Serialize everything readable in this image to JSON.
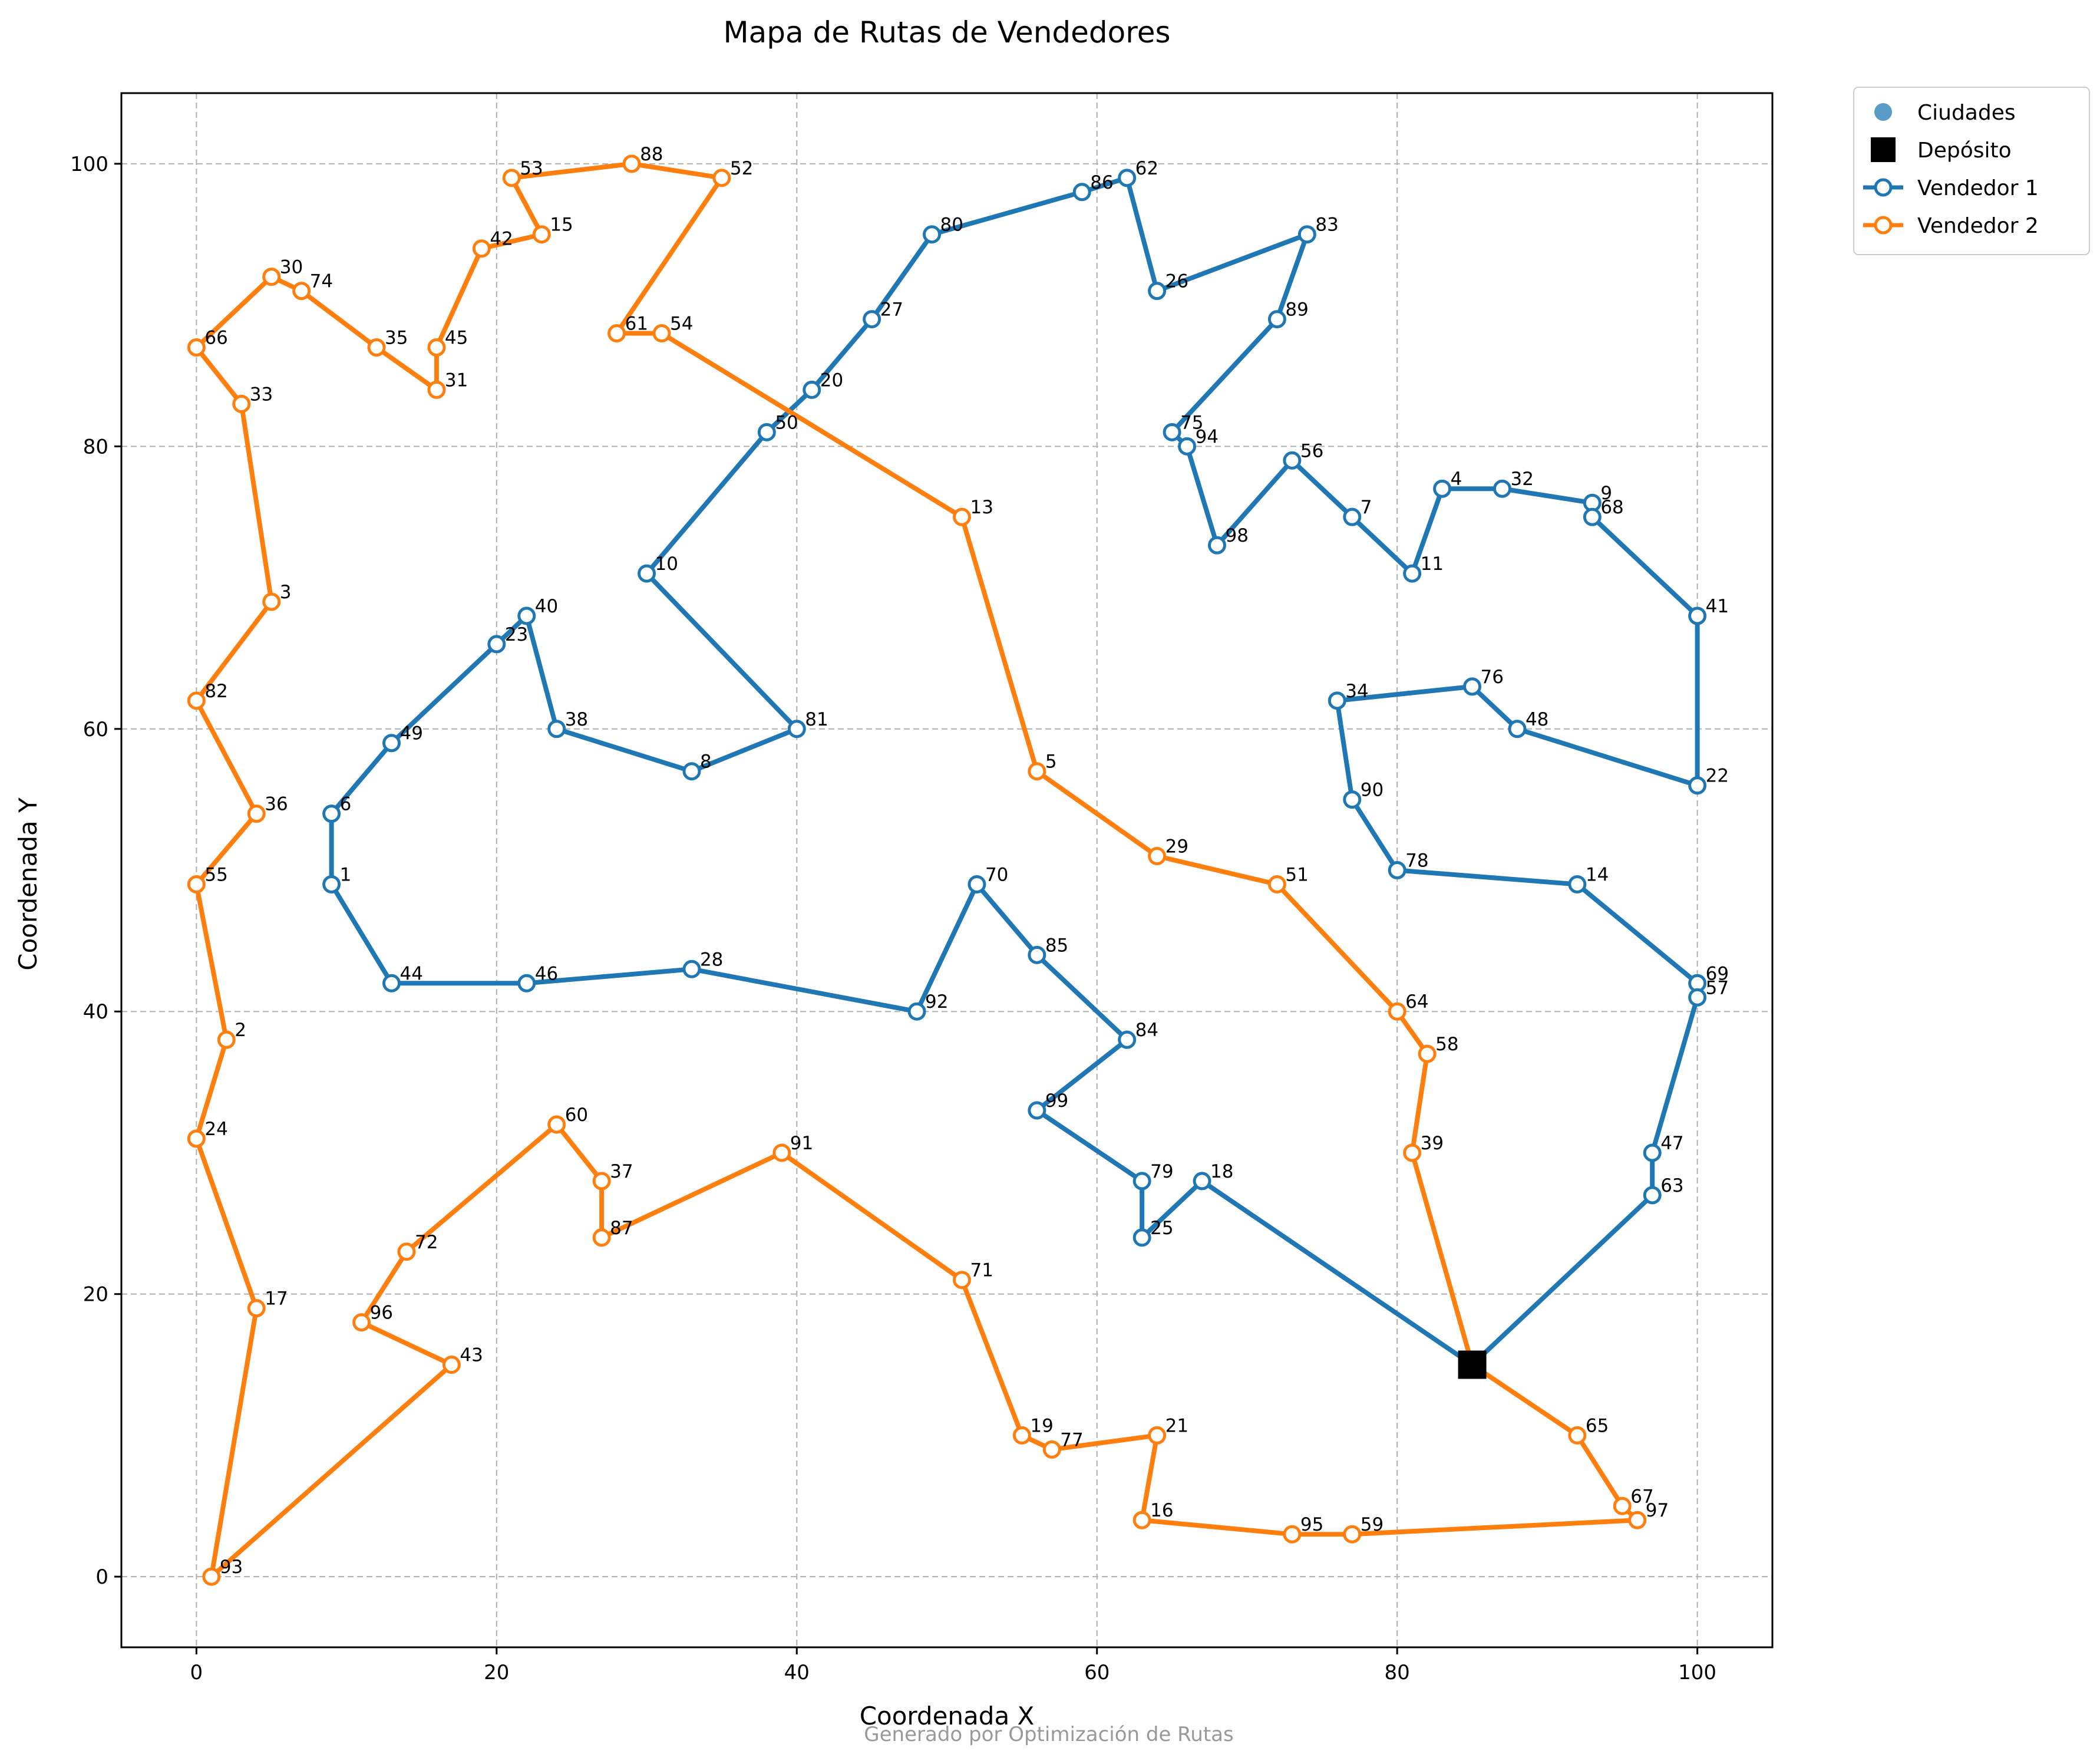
{
  "chart_data": {
    "type": "scatter",
    "title": "Mapa de Rutas de Vendedores",
    "xlabel": "Coordenada X",
    "ylabel": "Coordenada Y",
    "xlim": [
      -5,
      105
    ],
    "ylim": [
      -5,
      105
    ],
    "xticks": [
      0,
      20,
      40,
      60,
      80,
      100
    ],
    "yticks": [
      0,
      20,
      40,
      60,
      80,
      100
    ],
    "grid": true,
    "legend_position": "outside-top-right",
    "footer": "Generado por Optimización de Rutas",
    "legend": [
      {
        "label": "Ciudades",
        "kind": "city-marker",
        "color": "#5b9bc8"
      },
      {
        "label": "Depósito",
        "kind": "depot-marker",
        "color": "#000000"
      },
      {
        "label": "Vendedor 1",
        "kind": "route",
        "color": "#1f77b4"
      },
      {
        "label": "Vendedor 2",
        "kind": "route",
        "color": "#ff7f0e"
      }
    ],
    "depot": {
      "x": 85,
      "y": 15
    },
    "series": [
      {
        "name": "Vendedor 1",
        "color": "#1f77b4",
        "route": [
          {
            "id": "Depot",
            "x": 85,
            "y": 15
          },
          {
            "id": "18",
            "x": 67,
            "y": 28
          },
          {
            "id": "25",
            "x": 63,
            "y": 24
          },
          {
            "id": "79",
            "x": 63,
            "y": 28
          },
          {
            "id": "99",
            "x": 56,
            "y": 33
          },
          {
            "id": "84",
            "x": 62,
            "y": 38
          },
          {
            "id": "85",
            "x": 56,
            "y": 44
          },
          {
            "id": "70",
            "x": 52,
            "y": 49
          },
          {
            "id": "92",
            "x": 48,
            "y": 40
          },
          {
            "id": "28",
            "x": 33,
            "y": 43
          },
          {
            "id": "46",
            "x": 22,
            "y": 42
          },
          {
            "id": "44",
            "x": 13,
            "y": 42
          },
          {
            "id": "1",
            "x": 9,
            "y": 49
          },
          {
            "id": "6",
            "x": 9,
            "y": 54
          },
          {
            "id": "49",
            "x": 13,
            "y": 59
          },
          {
            "id": "23",
            "x": 20,
            "y": 66
          },
          {
            "id": "40",
            "x": 22,
            "y": 68
          },
          {
            "id": "38",
            "x": 24,
            "y": 60
          },
          {
            "id": "8",
            "x": 33,
            "y": 57
          },
          {
            "id": "81",
            "x": 40,
            "y": 60
          },
          {
            "id": "10",
            "x": 30,
            "y": 71
          },
          {
            "id": "50",
            "x": 38,
            "y": 81
          },
          {
            "id": "20",
            "x": 41,
            "y": 84
          },
          {
            "id": "27",
            "x": 45,
            "y": 89
          },
          {
            "id": "80",
            "x": 49,
            "y": 95
          },
          {
            "id": "86",
            "x": 59,
            "y": 98
          },
          {
            "id": "62",
            "x": 62,
            "y": 99
          },
          {
            "id": "26",
            "x": 64,
            "y": 91
          },
          {
            "id": "83",
            "x": 74,
            "y": 95
          },
          {
            "id": "89",
            "x": 72,
            "y": 89
          },
          {
            "id": "75",
            "x": 65,
            "y": 81
          },
          {
            "id": "94",
            "x": 66,
            "y": 80
          },
          {
            "id": "98",
            "x": 68,
            "y": 73
          },
          {
            "id": "56",
            "x": 73,
            "y": 79
          },
          {
            "id": "7",
            "x": 77,
            "y": 75
          },
          {
            "id": "11",
            "x": 81,
            "y": 71
          },
          {
            "id": "4",
            "x": 83,
            "y": 77
          },
          {
            "id": "32",
            "x": 87,
            "y": 77
          },
          {
            "id": "9",
            "x": 93,
            "y": 76
          },
          {
            "id": "68",
            "x": 93,
            "y": 75
          },
          {
            "id": "41",
            "x": 100,
            "y": 68
          },
          {
            "id": "22",
            "x": 100,
            "y": 56
          },
          {
            "id": "48",
            "x": 88,
            "y": 60
          },
          {
            "id": "76",
            "x": 85,
            "y": 63
          },
          {
            "id": "34",
            "x": 76,
            "y": 62
          },
          {
            "id": "90",
            "x": 77,
            "y": 55
          },
          {
            "id": "78",
            "x": 80,
            "y": 50
          },
          {
            "id": "14",
            "x": 92,
            "y": 49
          },
          {
            "id": "69",
            "x": 100,
            "y": 42
          },
          {
            "id": "57",
            "x": 100,
            "y": 41
          },
          {
            "id": "47",
            "x": 97,
            "y": 30
          },
          {
            "id": "63",
            "x": 97,
            "y": 27
          },
          {
            "id": "Depot",
            "x": 85,
            "y": 15
          }
        ]
      },
      {
        "name": "Vendedor 2",
        "color": "#ff7f0e",
        "route": [
          {
            "id": "Depot",
            "x": 85,
            "y": 15
          },
          {
            "id": "39",
            "x": 81,
            "y": 30
          },
          {
            "id": "58",
            "x": 82,
            "y": 37
          },
          {
            "id": "64",
            "x": 80,
            "y": 40
          },
          {
            "id": "51",
            "x": 72,
            "y": 49
          },
          {
            "id": "29",
            "x": 64,
            "y": 51
          },
          {
            "id": "5",
            "x": 56,
            "y": 57
          },
          {
            "id": "13",
            "x": 51,
            "y": 75
          },
          {
            "id": "54",
            "x": 31,
            "y": 88
          },
          {
            "id": "61",
            "x": 28,
            "y": 88
          },
          {
            "id": "52",
            "x": 35,
            "y": 99
          },
          {
            "id": "88",
            "x": 29,
            "y": 100
          },
          {
            "id": "53",
            "x": 21,
            "y": 99
          },
          {
            "id": "15",
            "x": 23,
            "y": 95
          },
          {
            "id": "42",
            "x": 19,
            "y": 94
          },
          {
            "id": "45",
            "x": 16,
            "y": 87
          },
          {
            "id": "31",
            "x": 16,
            "y": 84
          },
          {
            "id": "35",
            "x": 12,
            "y": 87
          },
          {
            "id": "74",
            "x": 7,
            "y": 91
          },
          {
            "id": "30",
            "x": 5,
            "y": 92
          },
          {
            "id": "66",
            "x": 0,
            "y": 87
          },
          {
            "id": "33",
            "x": 3,
            "y": 83
          },
          {
            "id": "3",
            "x": 5,
            "y": 69
          },
          {
            "id": "82",
            "x": 0,
            "y": 62
          },
          {
            "id": "36",
            "x": 4,
            "y": 54
          },
          {
            "id": "55",
            "x": 0,
            "y": 49
          },
          {
            "id": "2",
            "x": 2,
            "y": 38
          },
          {
            "id": "24",
            "x": 0,
            "y": 31
          },
          {
            "id": "17",
            "x": 4,
            "y": 19
          },
          {
            "id": "93",
            "x": 1,
            "y": 0
          },
          {
            "id": "43",
            "x": 17,
            "y": 15
          },
          {
            "id": "96",
            "x": 11,
            "y": 18
          },
          {
            "id": "72",
            "x": 14,
            "y": 23
          },
          {
            "id": "60",
            "x": 24,
            "y": 32
          },
          {
            "id": "37",
            "x": 27,
            "y": 28
          },
          {
            "id": "87",
            "x": 27,
            "y": 24
          },
          {
            "id": "91",
            "x": 39,
            "y": 30
          },
          {
            "id": "71",
            "x": 51,
            "y": 21
          },
          {
            "id": "19",
            "x": 55,
            "y": 10
          },
          {
            "id": "77",
            "x": 57,
            "y": 9
          },
          {
            "id": "21",
            "x": 64,
            "y": 10
          },
          {
            "id": "16",
            "x": 63,
            "y": 4
          },
          {
            "id": "95",
            "x": 73,
            "y": 3
          },
          {
            "id": "59",
            "x": 77,
            "y": 3
          },
          {
            "id": "97",
            "x": 96,
            "y": 4
          },
          {
            "id": "67",
            "x": 95,
            "y": 5
          },
          {
            "id": "65",
            "x": 92,
            "y": 10
          },
          {
            "id": "Depot",
            "x": 85,
            "y": 15
          }
        ]
      }
    ]
  }
}
